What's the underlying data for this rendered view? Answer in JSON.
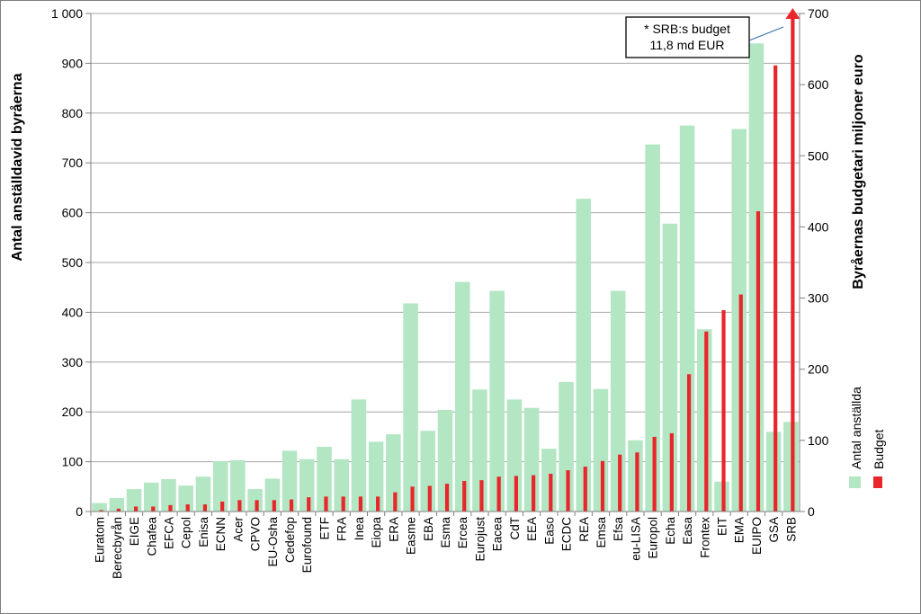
{
  "chart_data": {
    "type": "bar",
    "categories": [
      "Euratom",
      "Berecbyrån",
      "EIGE",
      "Chafea",
      "EFCA",
      "Cepol",
      "Enisa",
      "ECNN",
      "Acer",
      "CPVO",
      "EU-Osha",
      "Cedefop",
      "Eurofound",
      "ETF",
      "FRA",
      "Inea",
      "Eiopa",
      "ERA",
      "Easme",
      "EBA",
      "Esma",
      "Ercea",
      "Eurojust",
      "Eacea",
      "CdT",
      "EEA",
      "Easo",
      "ECDC",
      "REA",
      "Emsa",
      "Efsa",
      "eu-LISA",
      "Europol",
      "Echa",
      "Easa",
      "Frontex",
      "EIT",
      "EMA",
      "EUIPO",
      "GSA",
      "SRB"
    ],
    "series": [
      {
        "name": "Antal anställda",
        "axis": "left",
        "color": "#b3e6c2",
        "values": [
          17,
          27,
          45,
          58,
          65,
          52,
          70,
          101,
          103,
          45,
          66,
          122,
          105,
          130,
          105,
          225,
          140,
          155,
          418,
          162,
          204,
          461,
          245,
          443,
          225,
          208,
          126,
          260,
          628,
          246,
          443,
          143,
          737,
          578,
          775,
          366,
          60,
          768,
          940,
          160,
          180
        ]
      },
      {
        "name": "Budget",
        "axis": "right",
        "color": "#e8262b",
        "values": [
          2,
          4,
          7,
          7,
          9,
          10,
          10,
          14,
          16,
          16,
          16,
          17,
          20,
          21,
          21,
          21,
          21,
          27,
          35,
          36,
          39,
          43,
          44,
          49,
          50,
          51,
          53,
          58,
          63,
          71,
          80,
          83,
          105,
          110,
          193,
          253,
          283,
          305,
          422,
          627,
          700
        ],
        "note": "* SRB:s budget\n11,8 md EUR"
      }
    ],
    "y_left": {
      "label": "Antal anställdavid byråerna",
      "min": 0,
      "max": 1000,
      "ticks": [
        "0",
        "100",
        "200",
        "300",
        "400",
        "500",
        "600",
        "700",
        "800",
        "900",
        "1 000"
      ]
    },
    "y_right": {
      "label": "Byråernas budgetari miljoner euro",
      "min": 0,
      "max": 700,
      "ticks": [
        "0",
        "100",
        "200",
        "300",
        "400",
        "500",
        "600",
        "700"
      ]
    },
    "grid": true,
    "legend": {
      "position": "right",
      "items": [
        "Antal anställda",
        "Budget"
      ]
    },
    "annotation": {
      "line1": "* SRB:s budget",
      "line2": "11,8 md EUR"
    }
  }
}
